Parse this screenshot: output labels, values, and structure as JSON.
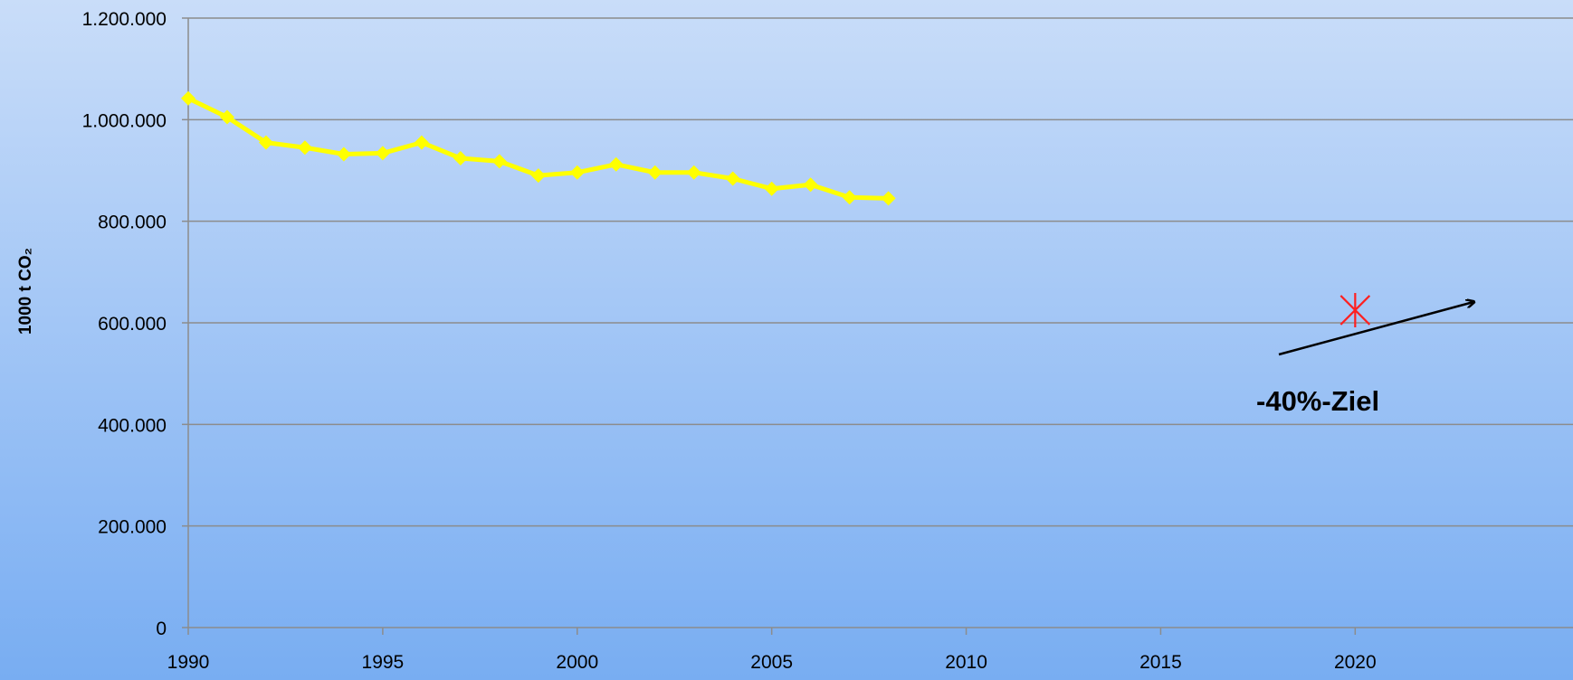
{
  "chart_data": {
    "type": "line",
    "y_label": "1000 t CO₂",
    "annotation": "-40%-Ziel",
    "xlim": [
      1990,
      2025.6
    ],
    "xticks": [
      1990,
      1995,
      2000,
      2005,
      2010,
      2015,
      2020
    ],
    "ylim": [
      0,
      1200000
    ],
    "yticks": [
      0,
      {
        "value": 200000,
        "label": "200.000"
      },
      {
        "value": 400000,
        "label": "400.000"
      },
      {
        "value": 600000,
        "label": "600.000"
      },
      {
        "value": 800000,
        "label": "800.000"
      },
      {
        "value": 1000000,
        "label": "1.000.000"
      },
      {
        "value": 1200000,
        "label": "1.200.000"
      }
    ],
    "grid": true,
    "series": [
      {
        "color": "#ffff00",
        "marker": "diamond",
        "x": [
          1990,
          1991,
          1992,
          1993,
          1994,
          1995,
          1996,
          1997,
          1998,
          1999,
          2000,
          2001,
          2002,
          2003,
          2004,
          2005,
          2006,
          2007,
          2008
        ],
        "values": [
          1042000,
          1005000,
          955000,
          945000,
          932000,
          934000,
          955000,
          924000,
          918000,
          890000,
          896000,
          912000,
          896000,
          896000,
          884000,
          864000,
          872000,
          847000,
          845000
        ]
      },
      {
        "color": "#ff2020",
        "marker": "x",
        "x": [
          2020
        ],
        "values": [
          625000
        ]
      }
    ]
  }
}
